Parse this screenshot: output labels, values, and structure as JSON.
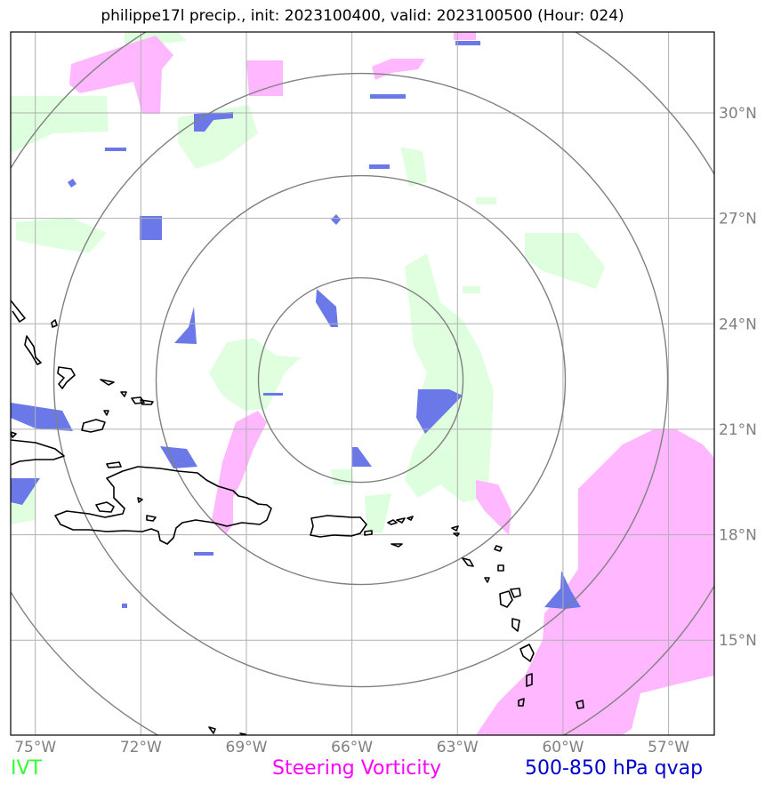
{
  "title": "philippe17l precip., init: 2023100400, valid: 2023100500 (Hour: 024)",
  "colors": {
    "ivt": "#33ff33",
    "ivt_fill": "#ddffdd",
    "vorticity": "#ff00ff",
    "vorticity_fill": "#ffb8ff",
    "qvap": "#0000cc",
    "qvap_fill": "#6a78e8",
    "grid": "#b0b0b0",
    "rings": "#808080",
    "coast": "#000000"
  },
  "map": {
    "lon_ticks": [
      "75°W",
      "72°W",
      "69°W",
      "66°W",
      "63°W",
      "60°W",
      "57°W"
    ],
    "lat_ticks": [
      "30°N",
      "27°N",
      "24°N",
      "21°N",
      "18°N",
      "15°N"
    ],
    "lon_values": [
      -75,
      -72,
      -69,
      -66,
      -63,
      -60,
      -57
    ],
    "lat_values": [
      30,
      27,
      24,
      21,
      18,
      15
    ],
    "extent": {
      "lon_min": -75.7,
      "lon_max": -55.7,
      "lat_min": 12.3,
      "lat_max": 32.3
    },
    "center": {
      "lon": -65.75,
      "lat": 22.4
    }
  },
  "legend": {
    "ivt": "IVT",
    "vorticity": "Steering Vorticity",
    "qvap": "500-850 hPa qvap"
  }
}
